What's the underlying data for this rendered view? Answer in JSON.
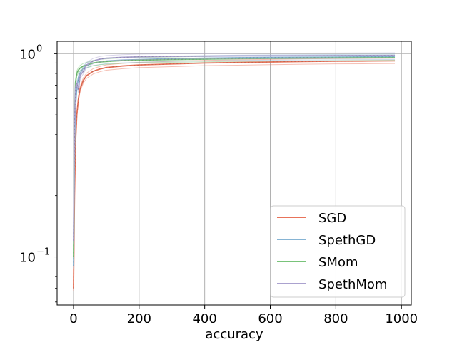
{
  "chart_data": {
    "type": "line",
    "title": "",
    "xlabel": "accuracy",
    "ylabel": "",
    "yscale": "log",
    "xlim": [
      -50,
      1030
    ],
    "ylim": [
      0.058,
      1.15
    ],
    "grid": true,
    "legend_position": "lower-right",
    "x_ticks": [
      {
        "value": 0,
        "label": "0"
      },
      {
        "value": 200,
        "label": "200"
      },
      {
        "value": 400,
        "label": "400"
      },
      {
        "value": 600,
        "label": "600"
      },
      {
        "value": 800,
        "label": "800"
      },
      {
        "value": 1000,
        "label": "1000"
      }
    ],
    "y_ticks": [
      {
        "value": 0.1,
        "base": "10",
        "exp": "−1"
      },
      {
        "value": 1.0,
        "base": "10",
        "exp": "0"
      }
    ],
    "series": [
      {
        "name": "SGD",
        "color": "#e8735a",
        "x": [
          0,
          3,
          6,
          10,
          15,
          20,
          30,
          40,
          60,
          80,
          100,
          150,
          200,
          300,
          400,
          500,
          600,
          700,
          800,
          900,
          980
        ],
        "y": [
          0.07,
          0.2,
          0.36,
          0.5,
          0.6,
          0.67,
          0.74,
          0.78,
          0.82,
          0.84,
          0.855,
          0.87,
          0.88,
          0.89,
          0.9,
          0.905,
          0.91,
          0.915,
          0.918,
          0.92,
          0.922
        ]
      },
      {
        "name": "SpethGD",
        "color": "#86b4d4",
        "x": [
          0,
          3,
          6,
          10,
          15,
          20,
          30,
          40,
          60,
          80,
          100,
          150,
          200,
          300,
          400,
          500,
          600,
          700,
          800,
          900,
          980
        ],
        "y": [
          0.09,
          0.35,
          0.55,
          0.68,
          0.76,
          0.8,
          0.85,
          0.875,
          0.9,
          0.91,
          0.92,
          0.93,
          0.935,
          0.945,
          0.95,
          0.955,
          0.958,
          0.96,
          0.962,
          0.964,
          0.965
        ]
      },
      {
        "name": "SMom",
        "color": "#79c37a",
        "x": [
          0,
          3,
          6,
          10,
          15,
          20,
          30,
          40,
          60,
          80,
          100,
          150,
          200,
          300,
          400,
          500,
          600,
          700,
          800,
          900,
          980
        ],
        "y": [
          0.1,
          0.45,
          0.72,
          0.8,
          0.83,
          0.85,
          0.87,
          0.88,
          0.9,
          0.91,
          0.915,
          0.925,
          0.93,
          0.935,
          0.94,
          0.945,
          0.948,
          0.95,
          0.952,
          0.954,
          0.955
        ]
      },
      {
        "name": "SpethMom",
        "color": "#aba2cf",
        "x": [
          0,
          3,
          6,
          10,
          15,
          20,
          30,
          40,
          60,
          80,
          100,
          150,
          200,
          300,
          400,
          500,
          600,
          700,
          800,
          900,
          980
        ],
        "y": [
          0.12,
          0.42,
          0.68,
          0.72,
          0.66,
          0.78,
          0.82,
          0.88,
          0.92,
          0.94,
          0.95,
          0.96,
          0.965,
          0.97,
          0.972,
          0.975,
          0.976,
          0.977,
          0.978,
          0.979,
          0.98
        ]
      }
    ]
  }
}
